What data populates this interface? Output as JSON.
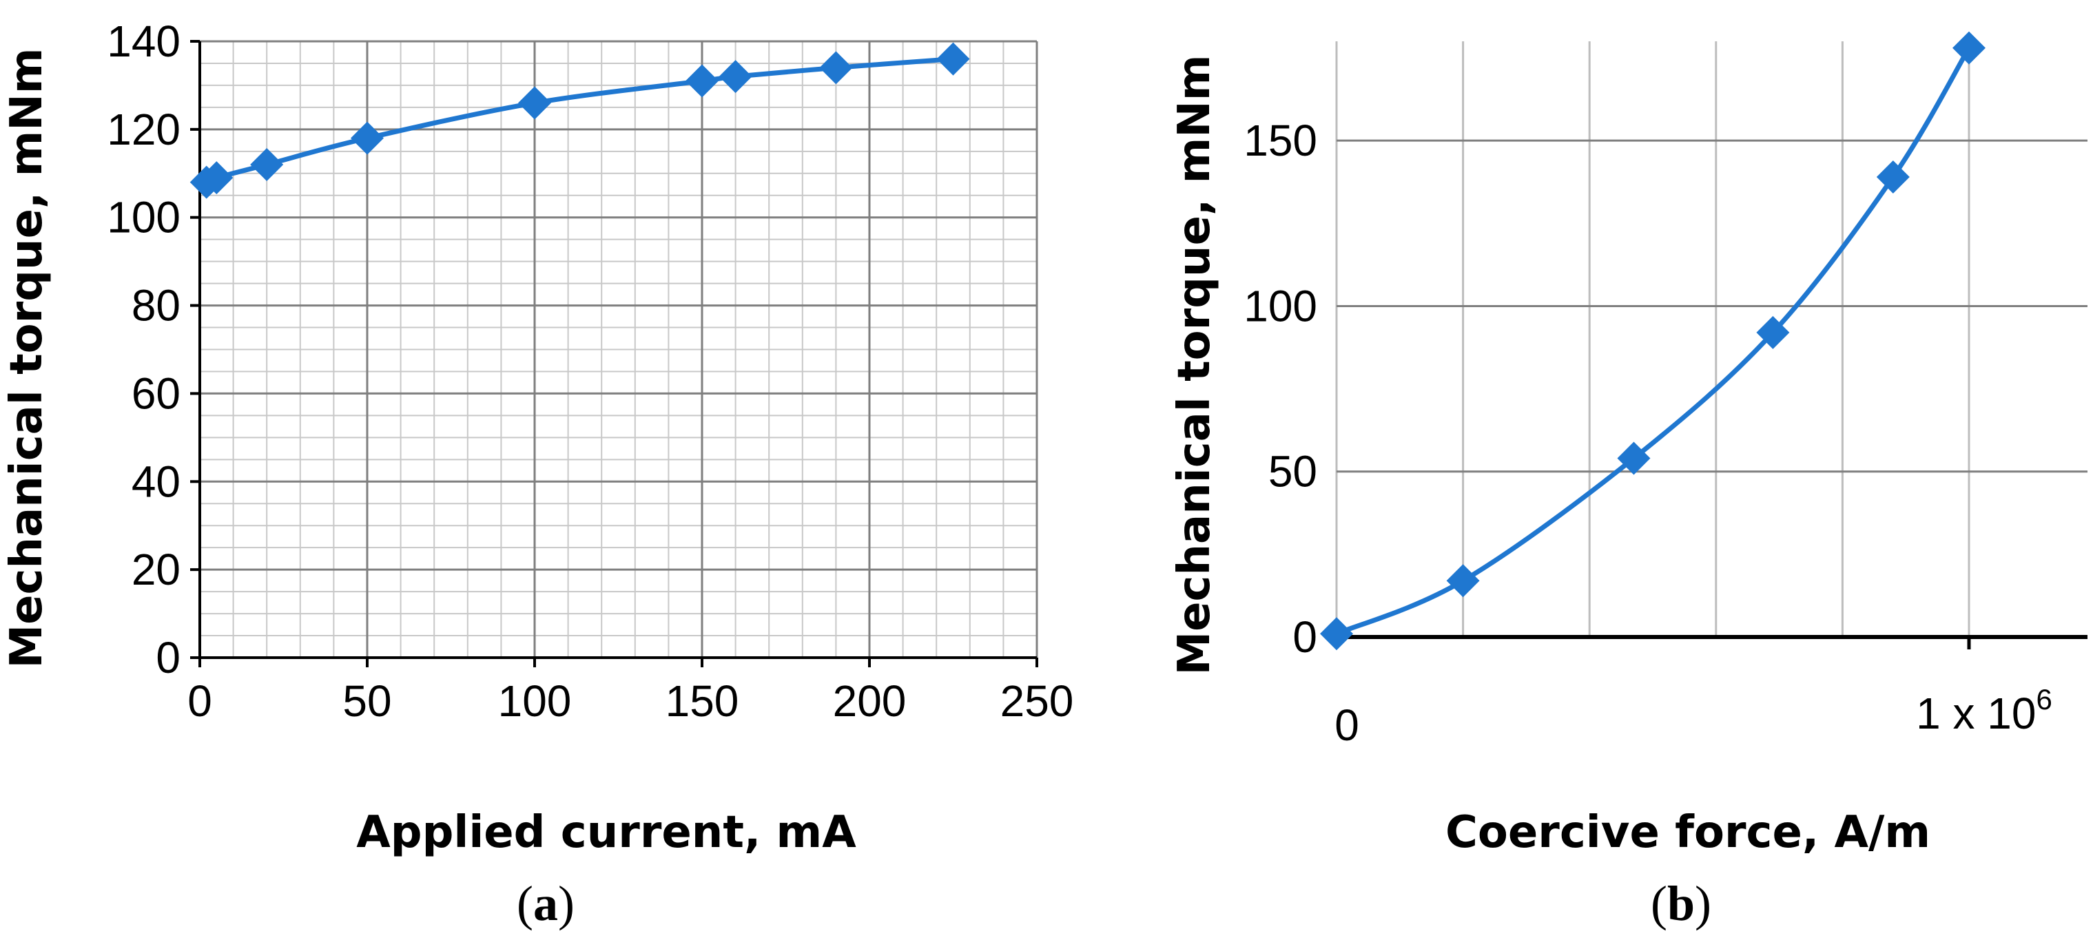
{
  "chart_data": [
    {
      "type": "line",
      "panel_label": "a",
      "xlabel": "Applied current, mA",
      "ylabel": "Mechanical torque, mNm",
      "xlim": [
        0,
        250
      ],
      "ylim": [
        0,
        140
      ],
      "x_ticks": [
        "0",
        "50",
        "100",
        "150",
        "200",
        "250"
      ],
      "y_ticks": [
        "0",
        "20",
        "40",
        "60",
        "80",
        "100",
        "120",
        "140"
      ],
      "grid": true,
      "series_color": "#1f77d0",
      "marker": "diamond",
      "x": [
        2,
        5,
        20,
        50,
        100,
        150,
        160,
        190,
        225
      ],
      "y": [
        108,
        109,
        112,
        118,
        126,
        131,
        132,
        134,
        136
      ]
    },
    {
      "type": "line",
      "panel_label": "b",
      "xlabel": "Coercive force, A/m",
      "ylabel": "Mechanical torque, mNm",
      "xlim": [
        0,
        1000000
      ],
      "ylim": [
        0,
        180
      ],
      "x_tick_zero": "0",
      "x_tick_max_base": "1 x 10",
      "x_tick_max_exp": "6",
      "y_ticks": [
        "0",
        "50",
        "100",
        "150"
      ],
      "grid": true,
      "series_color": "#1f77d0",
      "marker": "diamond",
      "x": [
        0,
        200000,
        470000,
        690000,
        880000,
        1000000
      ],
      "y": [
        1,
        17,
        54,
        92,
        139,
        178
      ]
    }
  ],
  "captions": {
    "a": {
      "open": "(",
      "letter": "a",
      "close": ")"
    },
    "b": {
      "open": "(",
      "letter": "b",
      "close": ")"
    }
  }
}
